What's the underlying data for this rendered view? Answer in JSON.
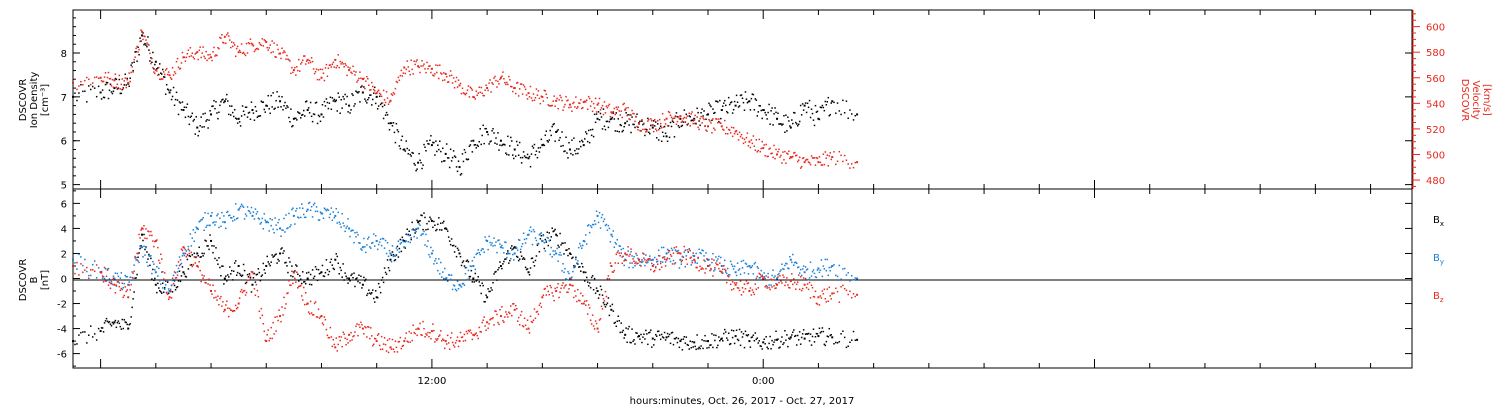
{
  "colors": {
    "density": "#000000",
    "velocity": "#e8281e",
    "bx": "#000000",
    "by": "#1a7fd6",
    "bz": "#e8281e",
    "axis": "#000000"
  },
  "xlabel": "hours:minutes, Oct. 26, 2017 - Oct. 27, 2017",
  "x_axis": {
    "range_hours": [
      -1,
      47.5
    ],
    "tick_labels": [
      {
        "hour": 12,
        "label": "12:00"
      },
      {
        "hour": 24,
        "label": "0:00"
      }
    ],
    "minor_step_hours": 2
  },
  "chart_data": [
    {
      "type": "scatter",
      "panel": "plasma",
      "x_unit": "hours since Oct. 26, 2017 00:00",
      "left_axis": {
        "label_lines": [
          "DSCOVR",
          "Ion Density"
        ],
        "unit": "[cm⁻³]",
        "ylim": [
          4.9,
          8.98
        ],
        "ticks": [
          5,
          6,
          7,
          8
        ]
      },
      "right_axis": {
        "label_lines": [
          "DSCOVR",
          "Velocity"
        ],
        "unit": "[km/s]",
        "ylim": [
          473,
          613
        ],
        "ticks": [
          480,
          500,
          520,
          540,
          560,
          580,
          600
        ]
      },
      "series": [
        {
          "key": "density",
          "axis": "left",
          "x": [
            -1,
            0,
            0.5,
            1,
            1.5,
            2,
            2.5,
            3,
            3.5,
            4,
            4.5,
            5,
            5.5,
            6,
            6.5,
            7,
            7.5,
            8,
            8.5,
            9,
            9.5,
            10,
            10.5,
            11,
            11.5,
            12,
            12.5,
            13,
            13.5,
            14,
            14.5,
            15,
            15.5,
            16,
            16.5,
            17,
            17.5,
            18,
            18.5,
            19,
            19.5,
            20,
            20.5,
            21,
            21.5,
            22,
            22.5,
            23,
            23.5,
            24,
            24.5,
            25,
            25.5,
            26,
            26.5,
            27.4
          ],
          "y": [
            7.0,
            7.1,
            7.2,
            7.3,
            8.4,
            7.8,
            7.1,
            6.7,
            6.3,
            6.6,
            6.9,
            6.5,
            6.7,
            6.8,
            6.9,
            6.5,
            6.7,
            6.6,
            6.9,
            6.8,
            7.1,
            7.0,
            6.4,
            5.8,
            5.5,
            5.9,
            5.7,
            5.4,
            6.0,
            6.2,
            6.0,
            5.8,
            5.6,
            5.9,
            6.2,
            5.8,
            5.9,
            6.5,
            6.5,
            6.4,
            6.4,
            6.3,
            6.1,
            6.5,
            6.5,
            6.6,
            6.7,
            6.8,
            6.9,
            6.7,
            6.5,
            6.3,
            6.8,
            6.5,
            6.9,
            6.6
          ]
        },
        {
          "key": "velocity",
          "axis": "right",
          "x": [
            -1,
            0,
            0.5,
            1,
            1.5,
            2,
            2.5,
            3,
            3.5,
            4,
            4.5,
            5,
            5.5,
            6,
            6.5,
            7,
            7.5,
            8,
            8.5,
            9,
            9.5,
            10,
            10.5,
            11,
            11.5,
            12,
            12.5,
            13,
            13.5,
            14,
            14.5,
            15,
            15.5,
            16,
            16.5,
            17,
            17.5,
            18,
            18.5,
            19,
            19.5,
            20,
            20.5,
            21,
            21.5,
            22,
            22.5,
            23,
            23.5,
            24,
            24.5,
            25,
            25.5,
            26,
            26.5,
            27.4
          ],
          "y": [
            556,
            560,
            558,
            556,
            596,
            566,
            562,
            576,
            580,
            576,
            592,
            580,
            586,
            588,
            579,
            566,
            574,
            560,
            574,
            566,
            559,
            548,
            542,
            568,
            569,
            567,
            563,
            554,
            545,
            552,
            560,
            552,
            548,
            545,
            542,
            539,
            541,
            539,
            533,
            535,
            524,
            523,
            528,
            530,
            527,
            522,
            522,
            518,
            510,
            505,
            500,
            498,
            494,
            494,
            498,
            494
          ]
        }
      ]
    },
    {
      "type": "scatter",
      "panel": "magnetic",
      "x_unit": "hours since Oct. 26, 2017 00:00",
      "left_axis": {
        "label_lines": [
          "DSCOVR",
          "B"
        ],
        "unit": "[nT]",
        "ylim": [
          -7.15,
          7.15
        ],
        "ticks": [
          -6,
          -4,
          -2,
          0,
          2,
          4,
          6
        ]
      },
      "legend_position": "right",
      "series": [
        {
          "key": "bx",
          "name": "B",
          "subscript": "x",
          "x": [
            -1,
            0,
            0.5,
            1,
            1.5,
            2,
            2.5,
            3,
            3.5,
            4,
            4.5,
            5,
            5.5,
            6,
            6.5,
            7,
            7.5,
            8,
            8.5,
            9,
            9.5,
            10,
            10.5,
            11,
            11.5,
            12,
            12.5,
            13,
            13.5,
            14,
            14.5,
            15,
            15.5,
            16,
            16.5,
            17,
            17.5,
            18,
            18.5,
            19,
            19.5,
            20,
            20.5,
            21,
            21.5,
            22,
            22.5,
            23,
            23.5,
            24,
            24.5,
            25,
            25.5,
            26,
            26.5,
            27.4
          ],
          "y": [
            -5.0,
            -4.2,
            -3.5,
            -4.0,
            3.5,
            -0.5,
            -1.0,
            0.5,
            2.0,
            3.0,
            0.0,
            1.0,
            -0.5,
            1.0,
            2.0,
            0.5,
            0.0,
            0.5,
            1.5,
            0.0,
            -0.5,
            -1.5,
            1.5,
            3.0,
            4.5,
            4.6,
            4.0,
            2.0,
            0.0,
            -1.5,
            1.0,
            2.5,
            0.5,
            3.0,
            3.5,
            2.0,
            0.5,
            -1.0,
            -2.5,
            -4.5,
            -4.6,
            -4.8,
            -4.7,
            -5.0,
            -5.1,
            -5.0,
            -4.8,
            -4.6,
            -5.0,
            -5.1,
            -4.9,
            -4.7,
            -4.8,
            -4.6,
            -4.7,
            -4.9
          ]
        },
        {
          "key": "by",
          "name": "B",
          "subscript": "y",
          "x": [
            -1,
            0,
            0.5,
            1,
            1.5,
            2,
            2.5,
            3,
            3.5,
            4,
            4.5,
            5,
            5.5,
            6,
            6.5,
            7,
            7.5,
            8,
            8.5,
            9,
            9.5,
            10,
            10.5,
            11,
            11.5,
            12,
            12.5,
            13,
            13.5,
            14,
            14.5,
            15,
            15.5,
            16,
            16.5,
            17,
            17.5,
            18,
            18.5,
            19,
            19.5,
            20,
            20.5,
            21,
            21.5,
            22,
            22.5,
            23,
            23.5,
            24,
            24.5,
            25,
            25.5,
            26,
            26.5,
            27.4
          ],
          "y": [
            1.5,
            0.5,
            0.0,
            -0.5,
            2.5,
            0.5,
            -1.0,
            2.0,
            4.0,
            5.0,
            4.5,
            5.5,
            5.0,
            4.5,
            4.0,
            5.0,
            5.5,
            5.2,
            5.0,
            4.0,
            2.5,
            3.0,
            2.0,
            2.5,
            4.0,
            2.0,
            0.0,
            -0.5,
            1.0,
            3.0,
            2.5,
            2.0,
            3.5,
            3.0,
            2.0,
            0.0,
            3.0,
            5.0,
            3.5,
            1.5,
            1.5,
            1.5,
            2.0,
            1.5,
            1.8,
            1.5,
            1.0,
            0.5,
            1.0,
            0.0,
            0.0,
            1.5,
            0.5,
            0.8,
            1.0,
            0.0
          ]
        },
        {
          "key": "bz",
          "name": "B",
          "subscript": "z",
          "x": [
            -1,
            0,
            0.5,
            1,
            1.5,
            2,
            2.5,
            3,
            3.5,
            4,
            4.5,
            5,
            5.5,
            6,
            6.5,
            7,
            7.5,
            8,
            8.5,
            9,
            9.5,
            10,
            10.5,
            11,
            11.5,
            12,
            12.5,
            13,
            13.5,
            14,
            14.5,
            15,
            15.5,
            16,
            16.5,
            17,
            17.5,
            18,
            18.5,
            19,
            19.5,
            20,
            20.5,
            21,
            21.5,
            22,
            22.5,
            23,
            23.5,
            24,
            24.5,
            25,
            25.5,
            26,
            26.5,
            27.4
          ],
          "y": [
            1.0,
            0.5,
            -0.5,
            -1.5,
            4.0,
            3.0,
            -1.5,
            2.5,
            1.0,
            -1.0,
            -2.5,
            -2.0,
            0.5,
            -5.0,
            -3.0,
            0.5,
            -2.0,
            -3.0,
            -5.5,
            -4.5,
            -4.0,
            -5.0,
            -5.5,
            -5.0,
            -4.0,
            -4.2,
            -5.0,
            -5.0,
            -4.5,
            -3.5,
            -3.0,
            -2.5,
            -4.0,
            -1.5,
            -1.0,
            -0.5,
            -2.0,
            -4.0,
            1.0,
            2.0,
            1.5,
            1.0,
            1.5,
            2.0,
            1.5,
            1.0,
            0.5,
            -0.5,
            -1.0,
            0.0,
            -0.5,
            -0.2,
            -0.5,
            -1.5,
            -1.2,
            -1.3
          ]
        }
      ]
    }
  ]
}
